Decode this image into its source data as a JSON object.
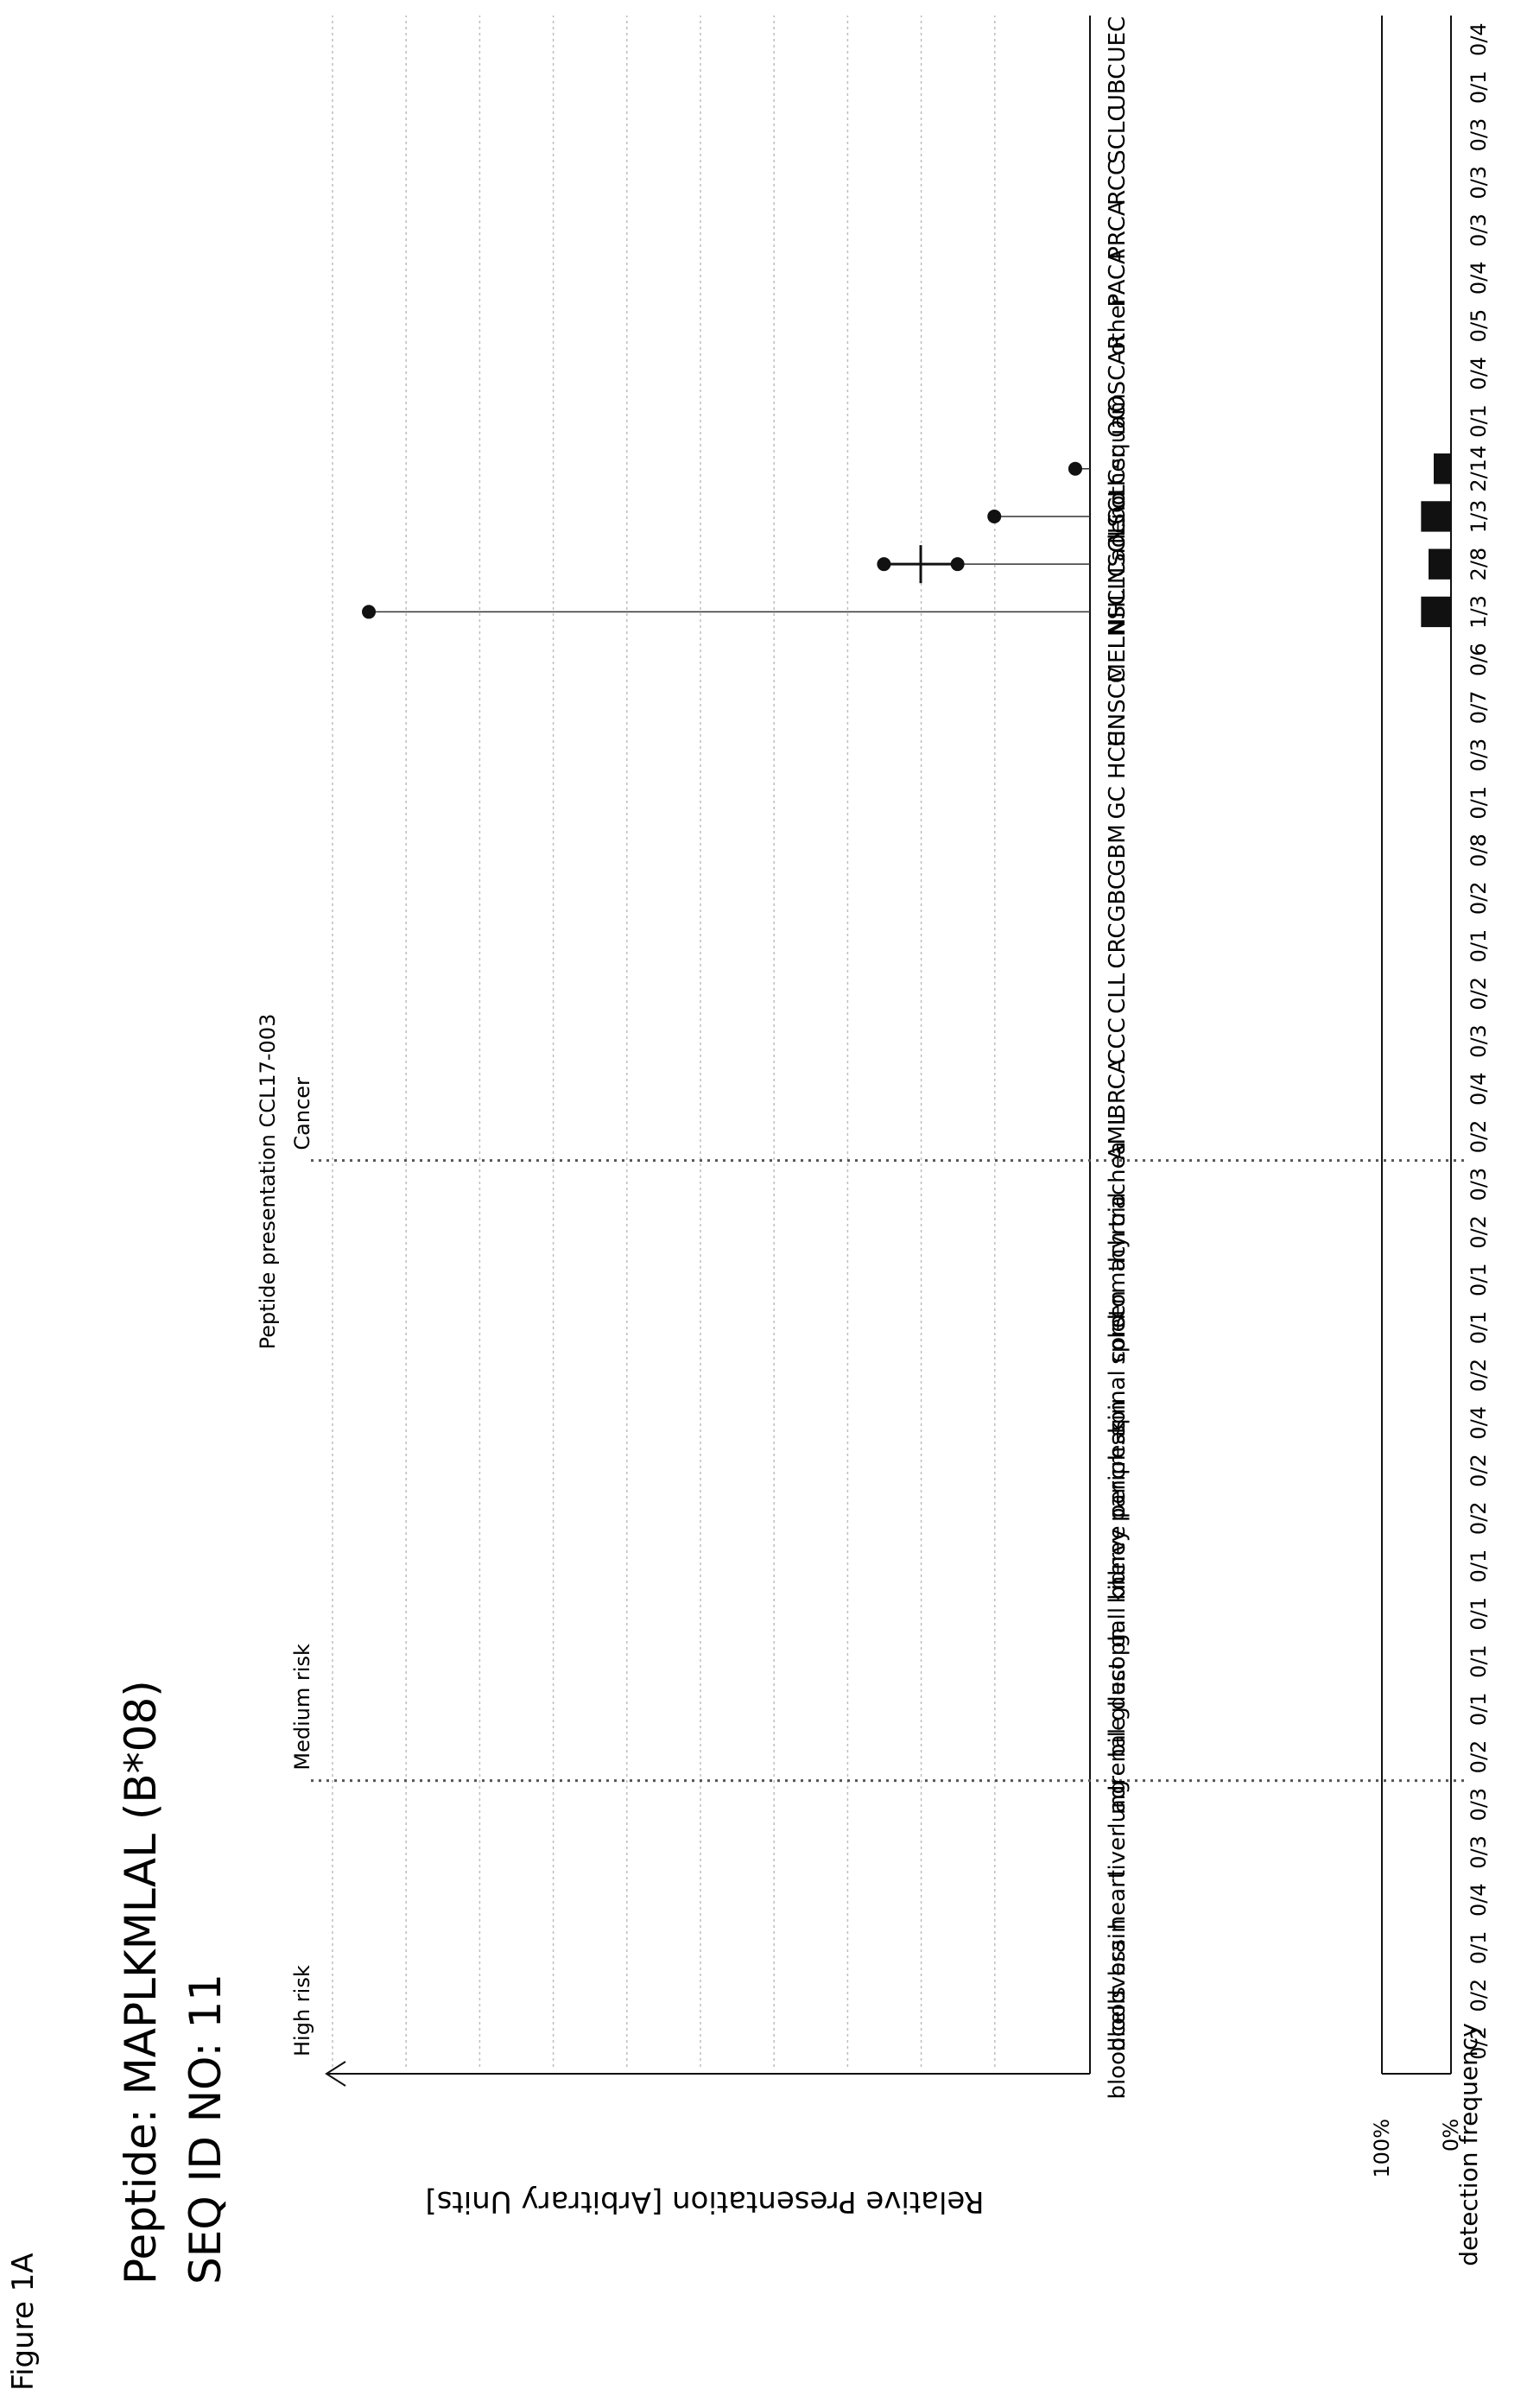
{
  "figure_label": "Figure 1A",
  "header": {
    "peptide": "Peptide: MAPLKMLAL (B*08)",
    "seq_id": "SEQ ID NO: 11"
  },
  "chart_data": {
    "type": "scatter",
    "title": "Peptide presentation CCL17-003",
    "ylabel": "Relative Presentation [Arbitrary Units]",
    "ylim": [
      0,
      1
    ],
    "grid": true,
    "categories": [
      "bloodcells",
      "bloodvess",
      "brain",
      "heart",
      "liver",
      "lung",
      "adrenal gl",
      "bile duct",
      "esoph",
      "gall bl",
      "kidney",
      "nerve periph",
      "pancreas",
      "skin",
      "spinal cord",
      "spleen",
      "stomach",
      "thyroid",
      "trachea",
      "AML",
      "BRCA",
      "CCC",
      "CLL",
      "CRC",
      "GBC",
      "GBM",
      "GC",
      "HCC",
      "HNSCC",
      "MEL",
      "NHL",
      "NSCLCadeno",
      "NSCLCother",
      "NSCLCsquam",
      "OC",
      "OSCAR",
      "other",
      "PACA",
      "PRCA",
      "RCC",
      "SCLC",
      "UBC",
      "UEC"
    ],
    "groups": [
      {
        "label": "High risk",
        "start": 0,
        "end": 5
      },
      {
        "label": "Medium risk",
        "start": 6,
        "end": 18
      },
      {
        "label": "Cancer",
        "start": 19,
        "end": 42
      }
    ],
    "points": [
      {
        "category": "NHL",
        "values": [
          0.98
        ]
      },
      {
        "category": "NSCLCadeno",
        "values": [
          0.28,
          0.18
        ]
      },
      {
        "category": "NSCLCother",
        "values": [
          0.13
        ]
      },
      {
        "category": "NSCLCsquam",
        "values": [
          0.02
        ]
      }
    ],
    "frequency": {
      "label": "detection frequency",
      "top_label": "100%",
      "bottom_label": "0%",
      "values": [
        "0/2",
        "0/2",
        "0/1",
        "0/4",
        "0/3",
        "0/3",
        "0/2",
        "0/1",
        "0/1",
        "0/1",
        "0/1",
        "0/2",
        "0/2",
        "0/4",
        "0/2",
        "0/1",
        "0/1",
        "0/2",
        "0/3",
        "0/2",
        "0/4",
        "0/3",
        "0/2",
        "0/1",
        "0/2",
        "0/8",
        "0/1",
        "0/3",
        "0/7",
        "0/6",
        "1/3",
        "2/8",
        "1/3",
        "2/14",
        "0/1",
        "0/4",
        "0/5",
        "0/4",
        "0/3",
        "0/3",
        "0/3",
        "0/1",
        "0/4"
      ]
    }
  }
}
